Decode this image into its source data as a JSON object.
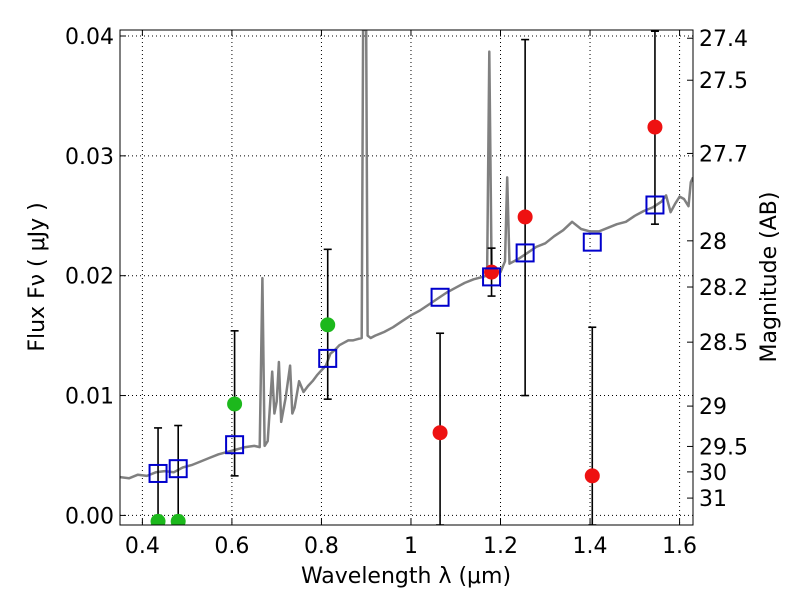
{
  "chart_data": {
    "type": "scatter",
    "xlabel": "Wavelength  λ (μm)",
    "ylabel_left": "Flux  Fν  ( μJy )",
    "ylabel_right": "Magnitude (AB)",
    "xlim": [
      0.35,
      1.63
    ],
    "ylim": [
      -0.0008,
      0.0405
    ],
    "x_ticks": [
      0.4,
      0.6,
      0.8,
      1.0,
      1.2,
      1.4,
      1.6
    ],
    "x_tick_labels": [
      "0.4",
      "0.6",
      "0.8",
      "1",
      "1.2",
      "1.4",
      "1.6"
    ],
    "y_ticks": [
      0.0,
      0.01,
      0.02,
      0.03,
      0.04
    ],
    "y_tick_labels": [
      "0.00",
      "0.01",
      "0.02",
      "0.03",
      "0.04"
    ],
    "mag_ticks": [
      27.4,
      27.5,
      27.7,
      28,
      28.2,
      28.5,
      29,
      29.5,
      30,
      31
    ],
    "mag_tick_labels": [
      "27.4",
      "27.5",
      "27.7",
      "28",
      "28.2",
      "28.5",
      "29",
      "29.5",
      "30",
      "31"
    ],
    "grid": true,
    "colors": {
      "sed": "#808080",
      "green": "#1cb81c",
      "red": "#ee1111",
      "model": "#0000cc",
      "errorbar": "#000000"
    },
    "green_points": [
      {
        "x": 0.435,
        "y": -0.0005
      },
      {
        "x": 0.48,
        "y": -0.0005
      },
      {
        "x": 0.606,
        "y": 0.0093
      },
      {
        "x": 0.814,
        "y": 0.0159
      }
    ],
    "red_points": [
      {
        "x": 1.065,
        "y": 0.0069
      },
      {
        "x": 1.18,
        "y": 0.0203
      },
      {
        "x": 1.255,
        "y": 0.0249
      },
      {
        "x": 1.405,
        "y": 0.0033
      },
      {
        "x": 1.545,
        "y": 0.0324
      }
    ],
    "model_points": [
      {
        "x": 0.435,
        "y": 0.0035
      },
      {
        "x": 0.48,
        "y": 0.0039
      },
      {
        "x": 0.606,
        "y": 0.0059
      },
      {
        "x": 0.814,
        "y": 0.0131
      },
      {
        "x": 1.065,
        "y": 0.0182
      },
      {
        "x": 1.18,
        "y": 0.0199
      },
      {
        "x": 1.255,
        "y": 0.0219
      },
      {
        "x": 1.405,
        "y": 0.0228
      },
      {
        "x": 1.545,
        "y": 0.0259
      }
    ],
    "error_bars": [
      {
        "x": 0.435,
        "low": 0.0,
        "high": 0.0073
      },
      {
        "x": 0.48,
        "low": 0.0,
        "high": 0.0075
      },
      {
        "x": 0.606,
        "low": 0.0033,
        "high": 0.0154
      },
      {
        "x": 0.814,
        "low": 0.0097,
        "high": 0.0222
      },
      {
        "x": 1.065,
        "low": -0.0008,
        "high": 0.0152
      },
      {
        "x": 1.18,
        "low": 0.0183,
        "high": 0.0223
      },
      {
        "x": 1.255,
        "low": 0.01,
        "high": 0.0397
      },
      {
        "x": 1.405,
        "low": -0.0008,
        "high": 0.0157
      },
      {
        "x": 1.545,
        "low": 0.0243,
        "high": 0.0404
      }
    ],
    "sed_curve": [
      [
        0.35,
        0.0032
      ],
      [
        0.37,
        0.0031
      ],
      [
        0.39,
        0.0034
      ],
      [
        0.41,
        0.0033
      ],
      [
        0.43,
        0.0036
      ],
      [
        0.45,
        0.0037
      ],
      [
        0.47,
        0.0036
      ],
      [
        0.49,
        0.004
      ],
      [
        0.51,
        0.0042
      ],
      [
        0.53,
        0.0045
      ],
      [
        0.55,
        0.0048
      ],
      [
        0.57,
        0.0051
      ],
      [
        0.59,
        0.0053
      ],
      [
        0.61,
        0.0055
      ],
      [
        0.63,
        0.0057
      ],
      [
        0.65,
        0.0058
      ],
      [
        0.662,
        0.0057
      ],
      [
        0.668,
        0.0198
      ],
      [
        0.673,
        0.0058
      ],
      [
        0.68,
        0.0062
      ],
      [
        0.69,
        0.012
      ],
      [
        0.695,
        0.0085
      ],
      [
        0.7,
        0.0095
      ],
      [
        0.705,
        0.0128
      ],
      [
        0.71,
        0.0078
      ],
      [
        0.72,
        0.0098
      ],
      [
        0.73,
        0.0125
      ],
      [
        0.735,
        0.0085
      ],
      [
        0.74,
        0.009
      ],
      [
        0.75,
        0.0112
      ],
      [
        0.76,
        0.0103
      ],
      [
        0.77,
        0.0108
      ],
      [
        0.78,
        0.0112
      ],
      [
        0.79,
        0.0117
      ],
      [
        0.8,
        0.0121
      ],
      [
        0.81,
        0.0125
      ],
      [
        0.82,
        0.0135
      ],
      [
        0.83,
        0.0138
      ],
      [
        0.84,
        0.0142
      ],
      [
        0.85,
        0.0144
      ],
      [
        0.86,
        0.0146
      ],
      [
        0.87,
        0.0146
      ],
      [
        0.88,
        0.0147
      ],
      [
        0.89,
        0.0148
      ],
      [
        0.893,
        0.0405
      ],
      [
        0.9,
        0.0405
      ],
      [
        0.903,
        0.015
      ],
      [
        0.91,
        0.0148
      ],
      [
        0.92,
        0.015
      ],
      [
        0.94,
        0.0153
      ],
      [
        0.96,
        0.0157
      ],
      [
        0.98,
        0.0162
      ],
      [
        1.0,
        0.0167
      ],
      [
        1.02,
        0.0171
      ],
      [
        1.04,
        0.0176
      ],
      [
        1.06,
        0.0181
      ],
      [
        1.08,
        0.0186
      ],
      [
        1.1,
        0.019
      ],
      [
        1.12,
        0.0194
      ],
      [
        1.14,
        0.0197
      ],
      [
        1.16,
        0.0199
      ],
      [
        1.17,
        0.02
      ],
      [
        1.175,
        0.0387
      ],
      [
        1.18,
        0.0205
      ],
      [
        1.19,
        0.0204
      ],
      [
        1.2,
        0.0203
      ],
      [
        1.21,
        0.0212
      ],
      [
        1.215,
        0.0282
      ],
      [
        1.22,
        0.021
      ],
      [
        1.24,
        0.0214
      ],
      [
        1.26,
        0.0219
      ],
      [
        1.28,
        0.0224
      ],
      [
        1.3,
        0.0227
      ],
      [
        1.32,
        0.0233
      ],
      [
        1.34,
        0.0238
      ],
      [
        1.36,
        0.0245
      ],
      [
        1.38,
        0.0239
      ],
      [
        1.4,
        0.0237
      ],
      [
        1.42,
        0.0237
      ],
      [
        1.44,
        0.024
      ],
      [
        1.46,
        0.0243
      ],
      [
        1.48,
        0.0245
      ],
      [
        1.5,
        0.025
      ],
      [
        1.52,
        0.0254
      ],
      [
        1.54,
        0.0257
      ],
      [
        1.56,
        0.0262
      ],
      [
        1.57,
        0.0267
      ],
      [
        1.58,
        0.0253
      ],
      [
        1.59,
        0.026
      ],
      [
        1.6,
        0.0266
      ],
      [
        1.61,
        0.0264
      ],
      [
        1.62,
        0.0258
      ],
      [
        1.625,
        0.0278
      ],
      [
        1.63,
        0.0282
      ]
    ]
  }
}
